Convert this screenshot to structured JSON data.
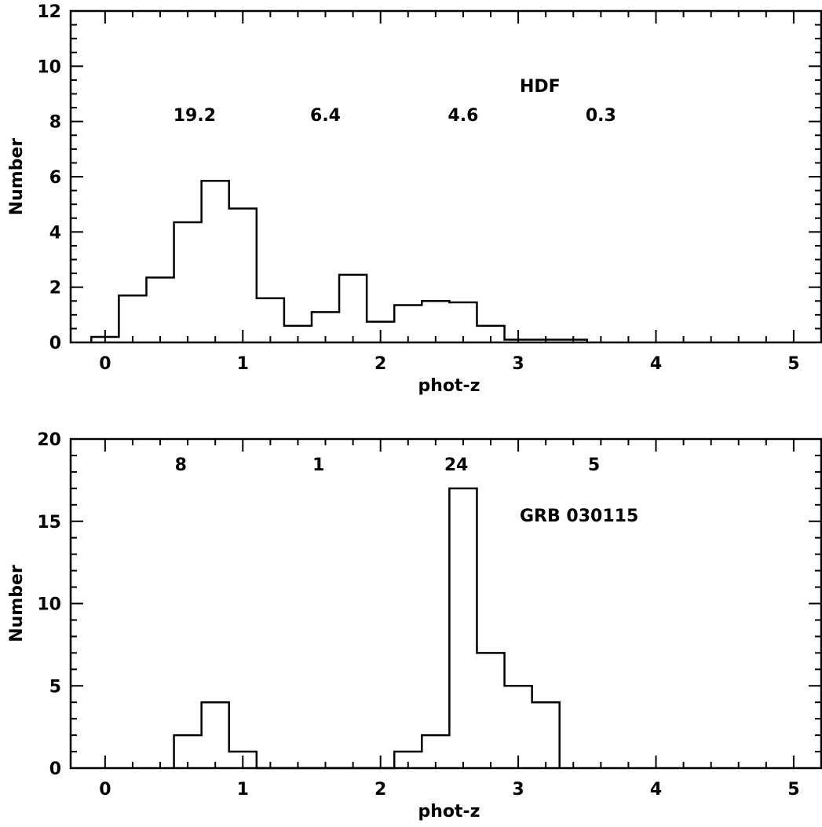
{
  "chart_data": [
    {
      "type": "histogram",
      "title": "HDF",
      "xlabel": "phot-z",
      "ylabel": "Number",
      "xlim": [
        -0.25,
        5.2
      ],
      "ylim": [
        0,
        12
      ],
      "x_ticks": [
        0,
        1,
        2,
        3,
        4,
        5
      ],
      "y_ticks": [
        0,
        2,
        4,
        6,
        8,
        10,
        12
      ],
      "x_tick_labels": [
        "0",
        "1",
        "2",
        "3",
        "4",
        "5"
      ],
      "y_tick_labels": [
        "0",
        "2",
        "4",
        "6",
        "8",
        "10",
        "12"
      ],
      "bin_edges": [
        -0.1,
        0.1,
        0.3,
        0.5,
        0.7,
        0.9,
        1.1,
        1.3,
        1.5,
        1.7,
        1.9,
        2.1,
        2.3,
        2.5,
        2.7,
        2.9,
        3.1,
        3.3,
        3.5
      ],
      "counts": [
        0.2,
        1.7,
        2.35,
        4.35,
        5.85,
        4.85,
        1.6,
        0.6,
        1.1,
        2.45,
        0.75,
        1.35,
        1.5,
        1.45,
        0.6,
        0.1,
        0.1,
        0.1
      ],
      "annotations": [
        {
          "text": "19.2",
          "x": 0.65
        },
        {
          "text": "6.4",
          "x": 1.6
        },
        {
          "text": "4.6",
          "x": 2.6
        },
        {
          "text": "0.3",
          "x": 3.6
        }
      ],
      "label": "HDF",
      "grid": false
    },
    {
      "type": "histogram",
      "title": "GRB 030115",
      "xlabel": "phot-z",
      "ylabel": "Number",
      "xlim": [
        -0.25,
        5.2
      ],
      "ylim": [
        0,
        20
      ],
      "x_ticks": [
        0,
        1,
        2,
        3,
        4,
        5
      ],
      "y_ticks": [
        0,
        5,
        10,
        15,
        20
      ],
      "x_tick_labels": [
        "0",
        "1",
        "2",
        "3",
        "4",
        "5"
      ],
      "y_tick_labels": [
        "0",
        "5",
        "10",
        "15",
        "20"
      ],
      "bin_edges": [
        0.5,
        0.7,
        0.9,
        1.1,
        1.3,
        1.5,
        1.7,
        1.9,
        2.1,
        2.3,
        2.5,
        2.7,
        2.9,
        3.1,
        3.3
      ],
      "counts": [
        2,
        4,
        1,
        0,
        0,
        0,
        0,
        0,
        1,
        2,
        17,
        7,
        5,
        4
      ],
      "annotations": [
        {
          "text": "8",
          "x": 0.55
        },
        {
          "text": "1",
          "x": 1.55
        },
        {
          "text": "24",
          "x": 2.55
        },
        {
          "text": "5",
          "x": 3.55
        }
      ],
      "label": "GRB 030115",
      "grid": false
    }
  ]
}
